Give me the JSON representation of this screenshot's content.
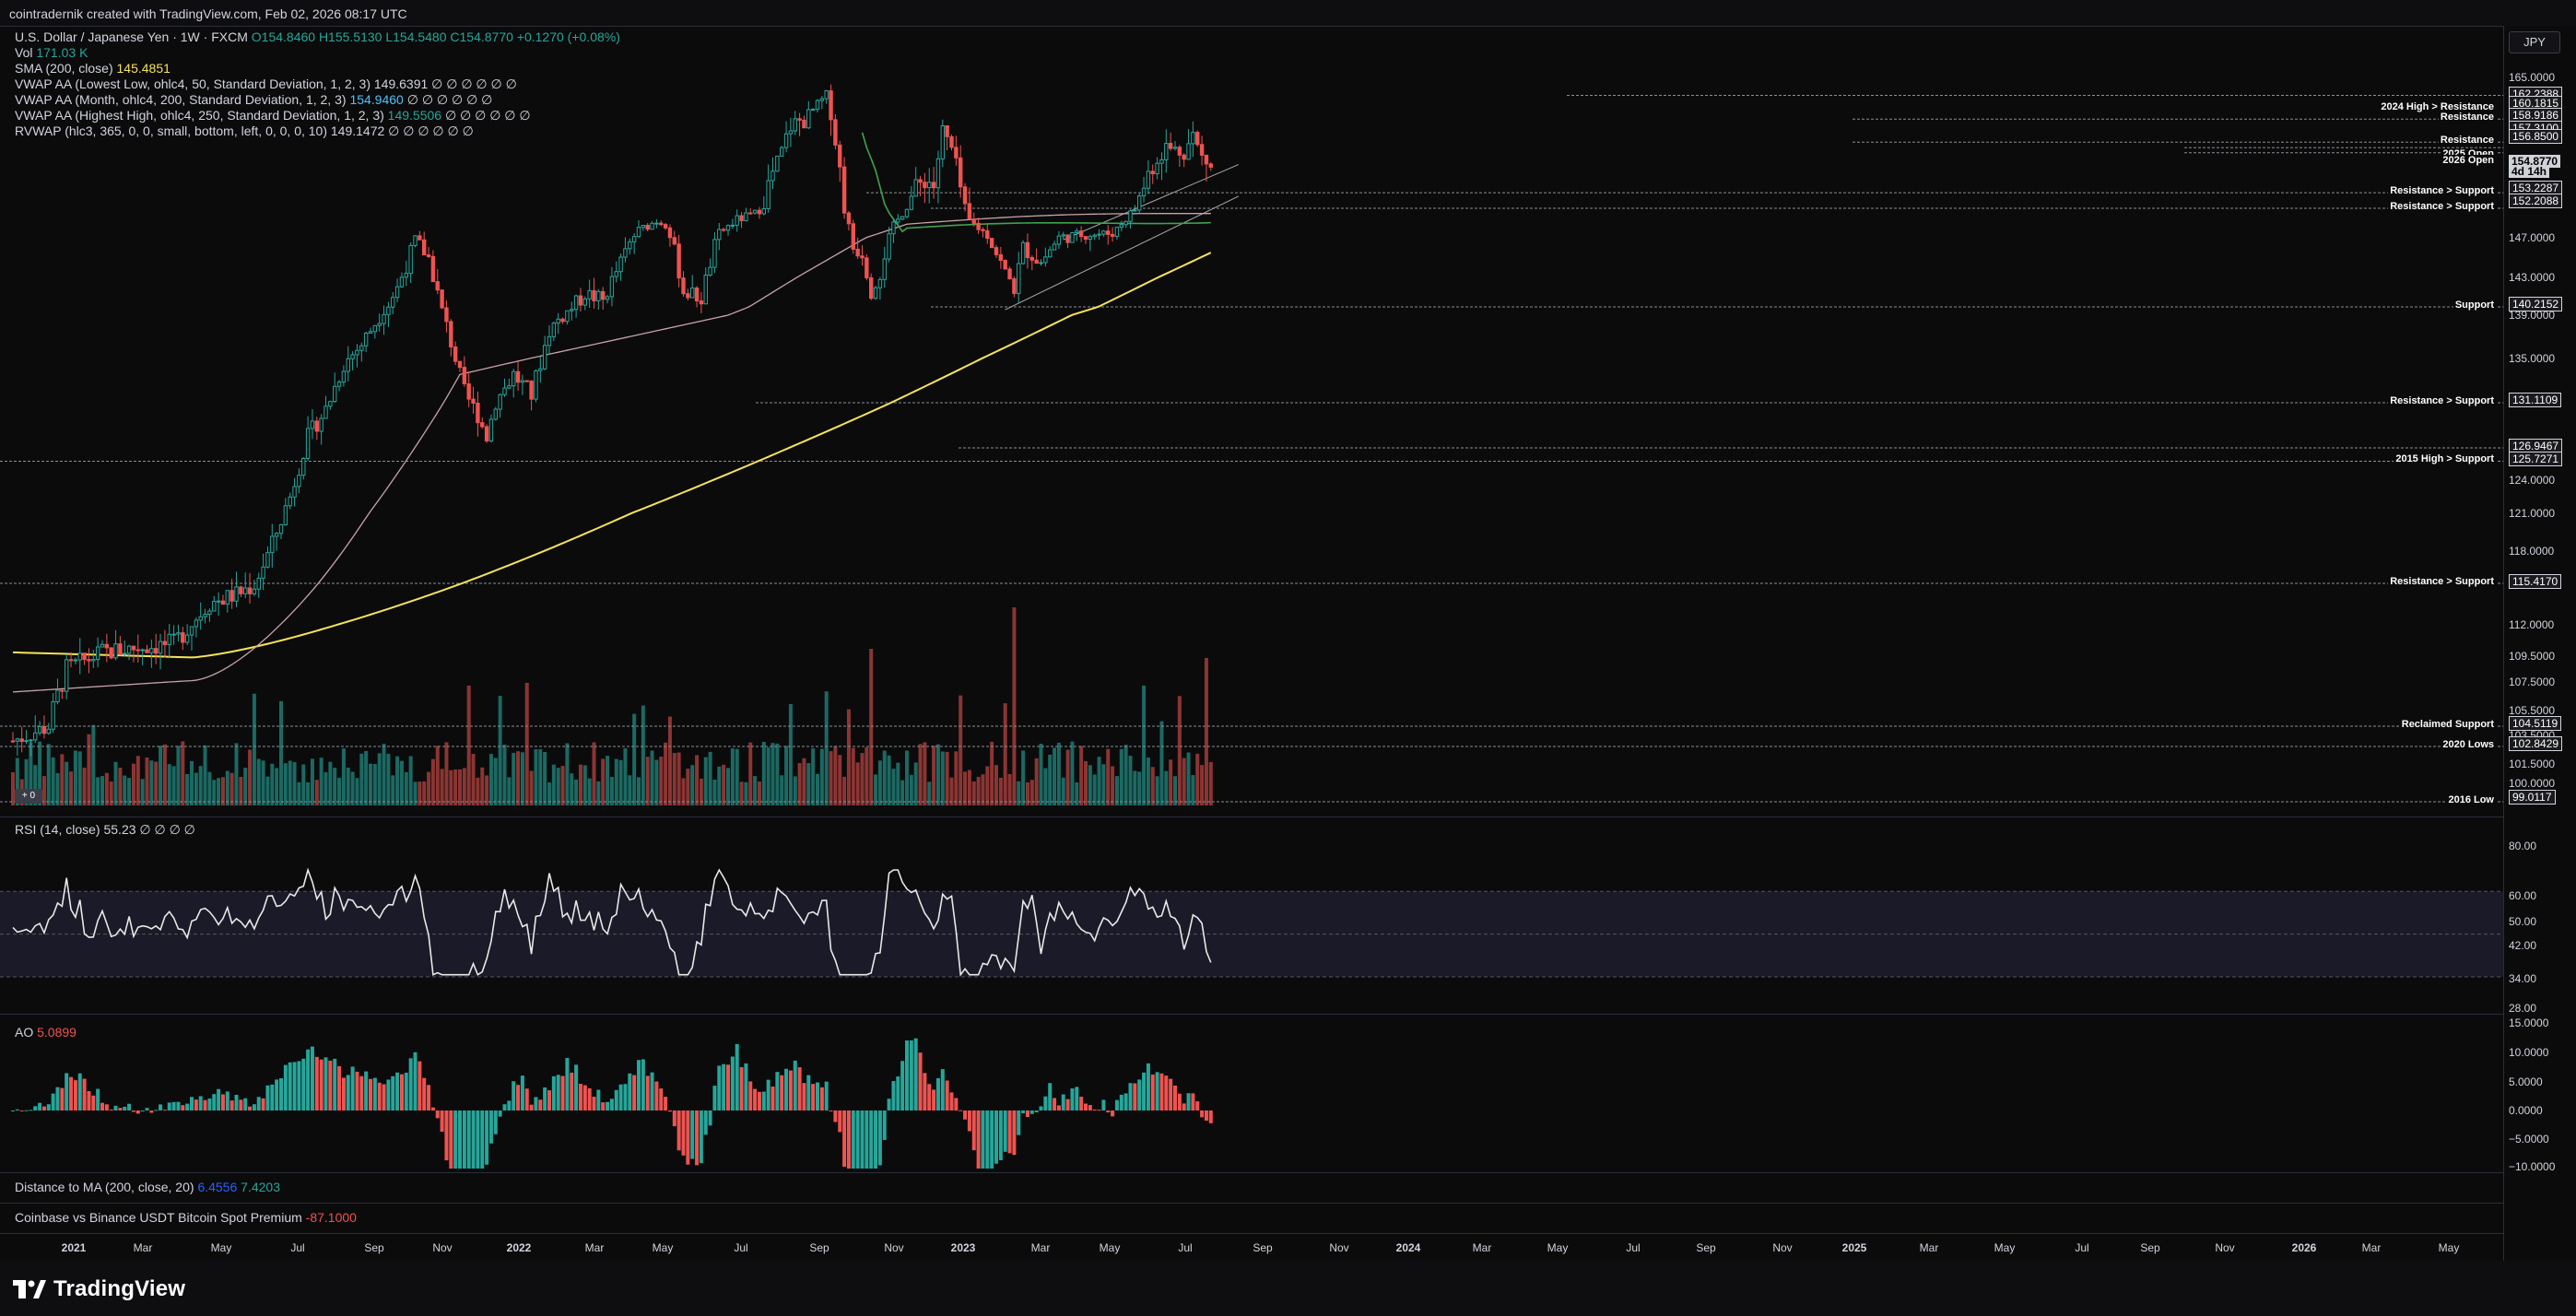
{
  "header": {
    "attribution": "cointradernik created with TradingView.com, Feb 02, 2026 08:17 UTC"
  },
  "legend": {
    "symbol": "U.S. Dollar / Japanese Yen · 1W · FXCM",
    "ohlc": "O154.8460  H155.5130  L154.5480  C154.8770  +0.1270 (+0.08%)",
    "vol_label": "Vol",
    "vol_value": "171.03 K",
    "sma_label": "SMA (200, close)",
    "sma_value": "145.4851",
    "vwap1": "VWAP AA (Lowest Low, ohlc4, 50, Standard Deviation, 1, 2, 3)  149.6391  ∅ ∅ ∅ ∅ ∅ ∅",
    "vwap2_label": "VWAP AA (Month, ohlc4, 200, Standard Deviation, 1, 2, 3)",
    "vwap2_value": "154.9460",
    "vwap2_tail": "∅ ∅ ∅ ∅ ∅ ∅",
    "vwap3_label": "VWAP AA (Highest High, ohlc4, 250, Standard Deviation, 1, 2, 3)",
    "vwap3_value": "149.5506",
    "vwap3_tail": "∅ ∅ ∅ ∅ ∅ ∅",
    "rvwap": "RVWAP (hlc3, 365, 0, 0, small, bottom, left, 0, 0, 0, 10)  149.1472  ∅ ∅ ∅ ∅ ∅ ∅"
  },
  "currency_button": "JPY",
  "rsi": {
    "label": "RSI (14, close)",
    "value": "55.23",
    "tail": "∅ ∅ ∅ ∅"
  },
  "ao": {
    "label": "AO",
    "value": "5.0899"
  },
  "distance": {
    "label": "Distance to MA (200, close, 20)",
    "value1": "6.4556",
    "value2": "7.4203"
  },
  "premium": {
    "label": "Coinbase vs Binance USDT Bitcoin Spot Premium",
    "value": "-87.1000"
  },
  "volume_badge": "+ 0",
  "price_axis": [
    "165.0000",
    "162.2388",
    "160.1815",
    "158.9186",
    "157.3100",
    "156.8500",
    "154.8770",
    "4d 14h",
    "153.2287",
    "152.2088",
    "147.0000",
    "143.0000",
    "140.2152",
    "139.0000",
    "135.0000",
    "131.1109",
    "126.9467",
    "125.7271",
    "124.0000",
    "121.0000",
    "118.0000",
    "115.4170",
    "112.0000",
    "109.5000",
    "107.5000",
    "105.5000",
    "104.5119",
    "103.5000",
    "102.8429",
    "101.5000",
    "100.0000",
    "99.0117"
  ],
  "rsi_axis": [
    "80.00",
    "60.00",
    "50.00",
    "42.00",
    "34.00",
    "28.00"
  ],
  "ao_axis": [
    "15.0000",
    "10.0000",
    "5.0000",
    "0.0000",
    "−5.0000",
    "−10.0000"
  ],
  "levels": [
    "2024 High > Resistance",
    "Resistance",
    "Resistance",
    "2025 Open",
    "2026 Open",
    "Resistance > Support",
    "Resistance > Support",
    "Support",
    "Resistance > Support",
    "2015 High > Support",
    "Resistance > Support",
    "Reclaimed Support",
    "2020 Lows",
    "2016 Low"
  ],
  "time_axis": [
    "2021",
    "Mar",
    "May",
    "Jul",
    "Sep",
    "Nov",
    "2022",
    "Mar",
    "May",
    "Jul",
    "Sep",
    "Nov",
    "2023",
    "Mar",
    "May",
    "Jul",
    "Sep",
    "Nov",
    "2024",
    "Mar",
    "May",
    "Jul",
    "Sep",
    "Nov",
    "2025",
    "Mar",
    "May",
    "Jul",
    "Sep",
    "Nov",
    "2026",
    "Mar",
    "May"
  ],
  "footer": {
    "brand": "TradingView"
  },
  "colors": {
    "up": "#26a69a",
    "down": "#ef5350",
    "sma": "#f7e35a",
    "rvwap": "#c9a3a6",
    "vwap": "#3fa34d"
  }
}
